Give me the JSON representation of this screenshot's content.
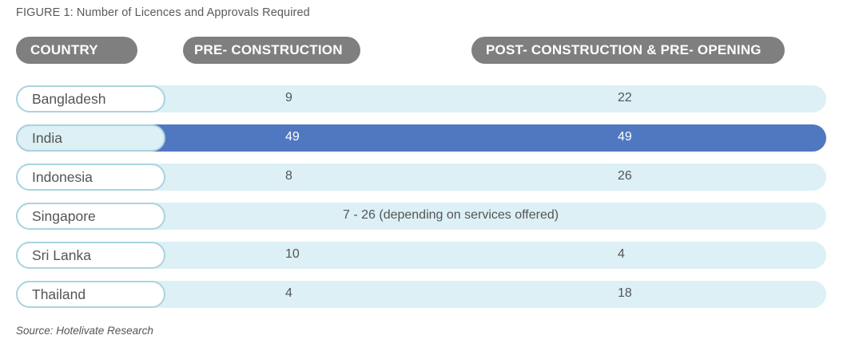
{
  "figure_title": "FIGURE 1:  Number of Licences and Approvals Required",
  "headers": {
    "country": "COUNTRY",
    "pre": "PRE- CONSTRUCTION",
    "post": "POST- CONSTRUCTION & PRE- OPENING"
  },
  "source": "Source: Hotelivate Research",
  "colors": {
    "header_pill": "#7f7f7f",
    "row_track": "#dcf0f5",
    "highlight_row": "#5078c0",
    "country_border": "#a9d3de"
  },
  "chart_data": {
    "type": "table",
    "title": "FIGURE 1:  Number of Licences and Approvals Required",
    "columns": [
      "COUNTRY",
      "PRE- CONSTRUCTION",
      "POST- CONSTRUCTION & PRE- OPENING"
    ],
    "highlighted_row": "India",
    "rows": [
      {
        "country": "Bangladesh",
        "pre": "9",
        "post": "22"
      },
      {
        "country": "India",
        "pre": "49",
        "post": "49",
        "highlight": true
      },
      {
        "country": "Indonesia",
        "pre": "8",
        "post": "26"
      },
      {
        "country": "Singapore",
        "combined": "7 - 26 (depending on services offered)"
      },
      {
        "country": "Sri Lanka",
        "pre": "10",
        "post": "4"
      },
      {
        "country": "Thailand",
        "pre": "4",
        "post": "18"
      }
    ]
  }
}
